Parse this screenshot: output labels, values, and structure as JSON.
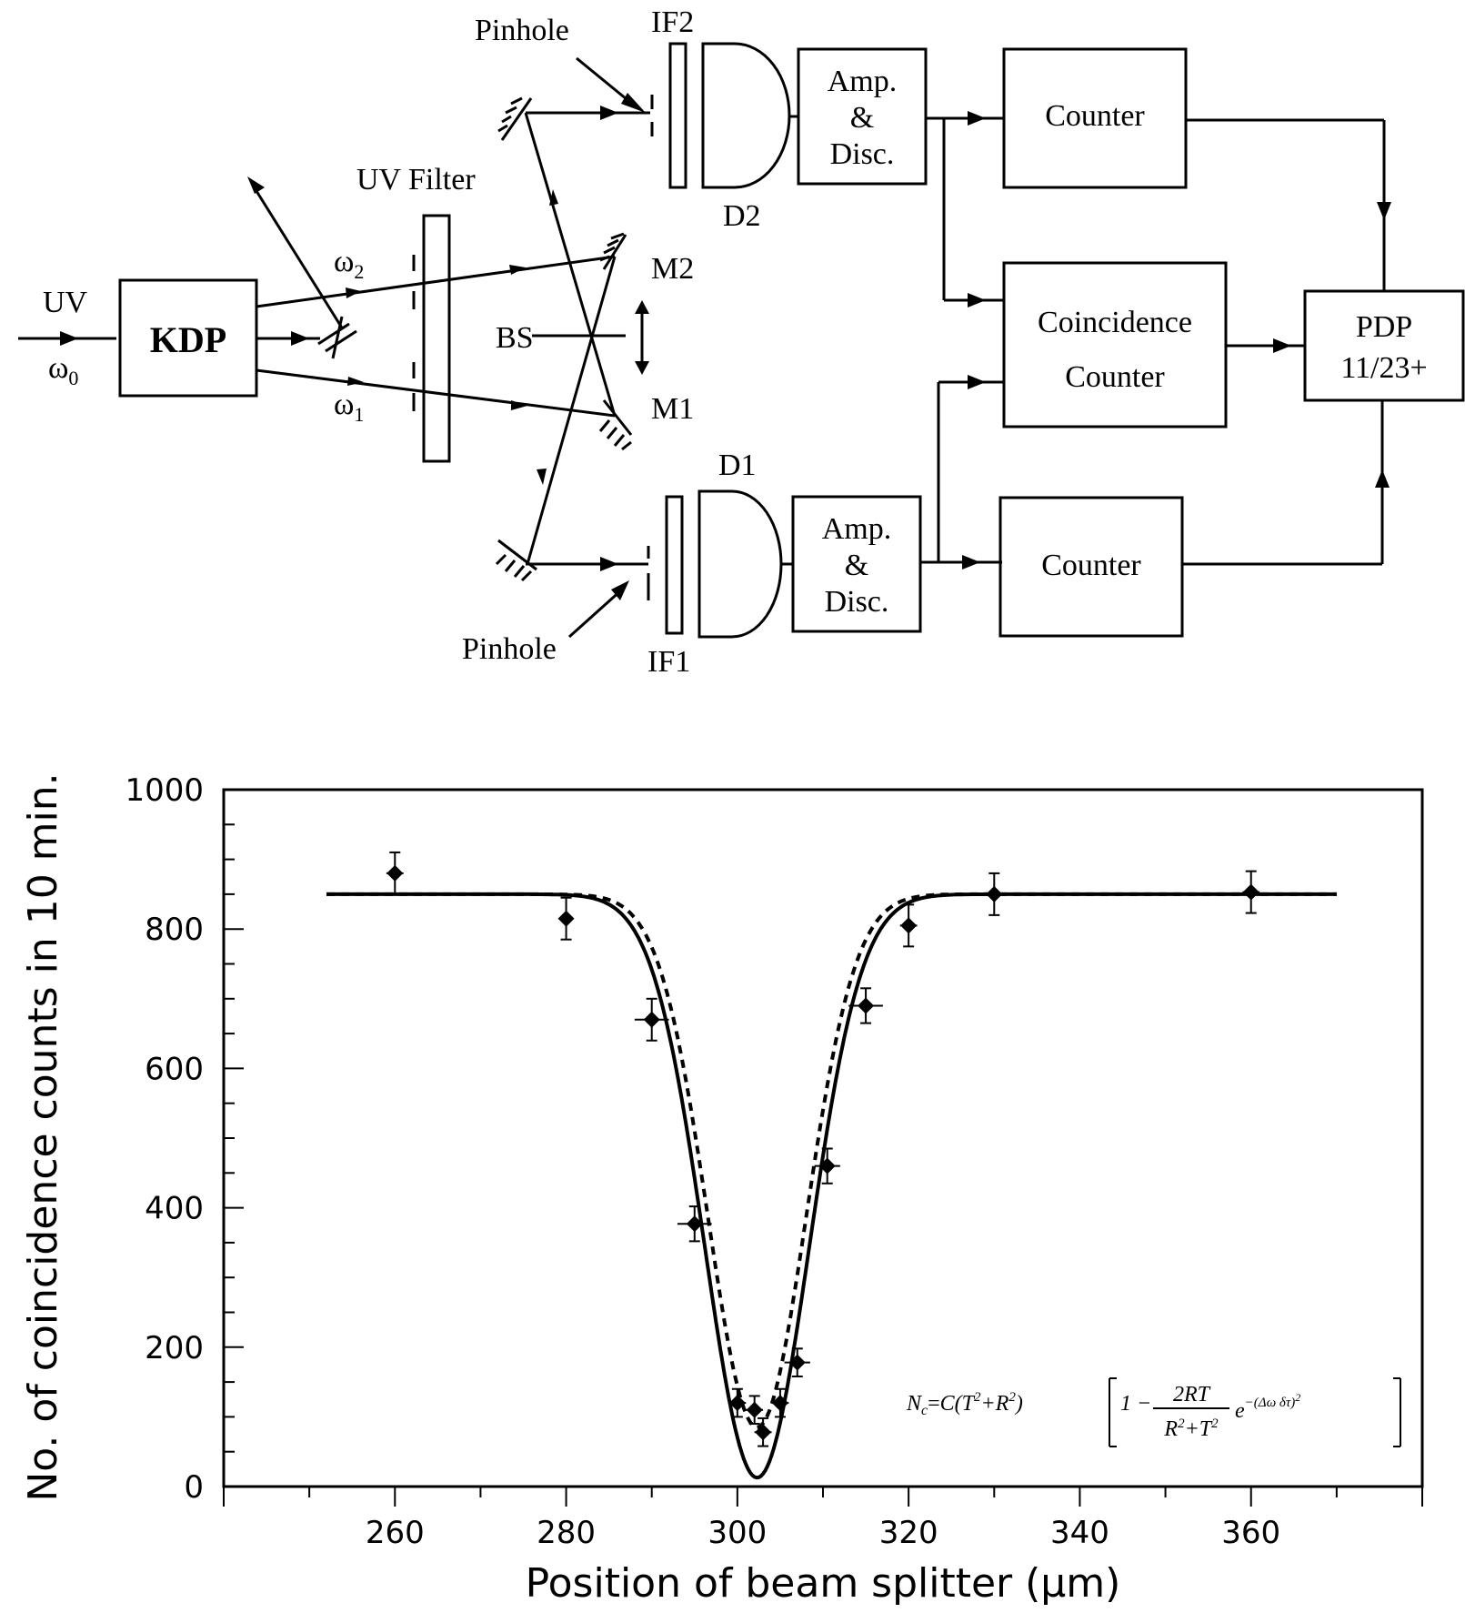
{
  "diagram": {
    "input_uv": "UV",
    "input_freq": "ω",
    "input_freq_sub": "0",
    "crystal": "KDP",
    "beam2_freq": "ω",
    "beam2_freq_sub": "2",
    "beam1_freq": "ω",
    "beam1_freq_sub": "1",
    "uv_filter": "UV Filter",
    "beam_splitter": "BS",
    "mirror2": "M2",
    "mirror1": "M1",
    "pinhole_top": "Pinhole",
    "pinhole_bottom": "Pinhole",
    "filter_top": "IF2",
    "filter_bottom": "IF1",
    "detector_top": "D2",
    "detector_bottom": "D1",
    "amp_top": [
      "Amp.",
      "&",
      "Disc."
    ],
    "amp_bottom": [
      "Amp.",
      "&",
      "Disc."
    ],
    "counter_top": "Counter",
    "counter_bottom": "Counter",
    "coincidence": [
      "Coincidence",
      "Counter"
    ],
    "computer": [
      "PDP",
      "11/23+"
    ]
  },
  "chart_data": {
    "type": "scatter",
    "xlabel": "Position of beam splitter (μm)",
    "ylabel": "No. of coincidence counts in 10 min.",
    "xlim": [
      240,
      380
    ],
    "ylim": [
      0,
      1000
    ],
    "xticks": [
      260,
      280,
      300,
      320,
      340,
      360
    ],
    "yticks": [
      0,
      200,
      400,
      600,
      800,
      1000
    ],
    "points": [
      {
        "x": 260,
        "y": 880,
        "yerr": 30,
        "xerr": 1
      },
      {
        "x": 280,
        "y": 815,
        "yerr": 30,
        "xerr": 0.5
      },
      {
        "x": 290,
        "y": 670,
        "yerr": 30,
        "xerr": 2
      },
      {
        "x": 295,
        "y": 377,
        "yerr": 25,
        "xerr": 2
      },
      {
        "x": 300,
        "y": 120,
        "yerr": 20,
        "xerr": 1
      },
      {
        "x": 302,
        "y": 110,
        "yerr": 20,
        "xerr": 1
      },
      {
        "x": 303,
        "y": 78,
        "yerr": 20,
        "xerr": 1
      },
      {
        "x": 305,
        "y": 120,
        "yerr": 20,
        "xerr": 1
      },
      {
        "x": 307,
        "y": 178,
        "yerr": 20,
        "xerr": 1.5
      },
      {
        "x": 310.5,
        "y": 460,
        "yerr": 25,
        "xerr": 1.5
      },
      {
        "x": 315,
        "y": 690,
        "yerr": 25,
        "xerr": 2
      },
      {
        "x": 320,
        "y": 805,
        "yerr": 30,
        "xerr": 1
      },
      {
        "x": 330,
        "y": 850,
        "yerr": 30,
        "xerr": 1
      },
      {
        "x": 360,
        "y": 853,
        "yerr": 30,
        "xerr": 1
      }
    ],
    "fit_solid": {
      "baseline": 850,
      "center": 302.3,
      "sigma": 8.6,
      "visibility": 0.985,
      "xrange": [
        252,
        370
      ]
    },
    "fit_dashed": {
      "baseline": 850,
      "center": 302.3,
      "sigma": 8.1,
      "visibility": 0.9,
      "xrange": [
        252,
        370
      ]
    },
    "equation": "N_c = C(T²+R²)[1 − 2RT/(R²+T²) e^−(Δω δτ)²]"
  }
}
